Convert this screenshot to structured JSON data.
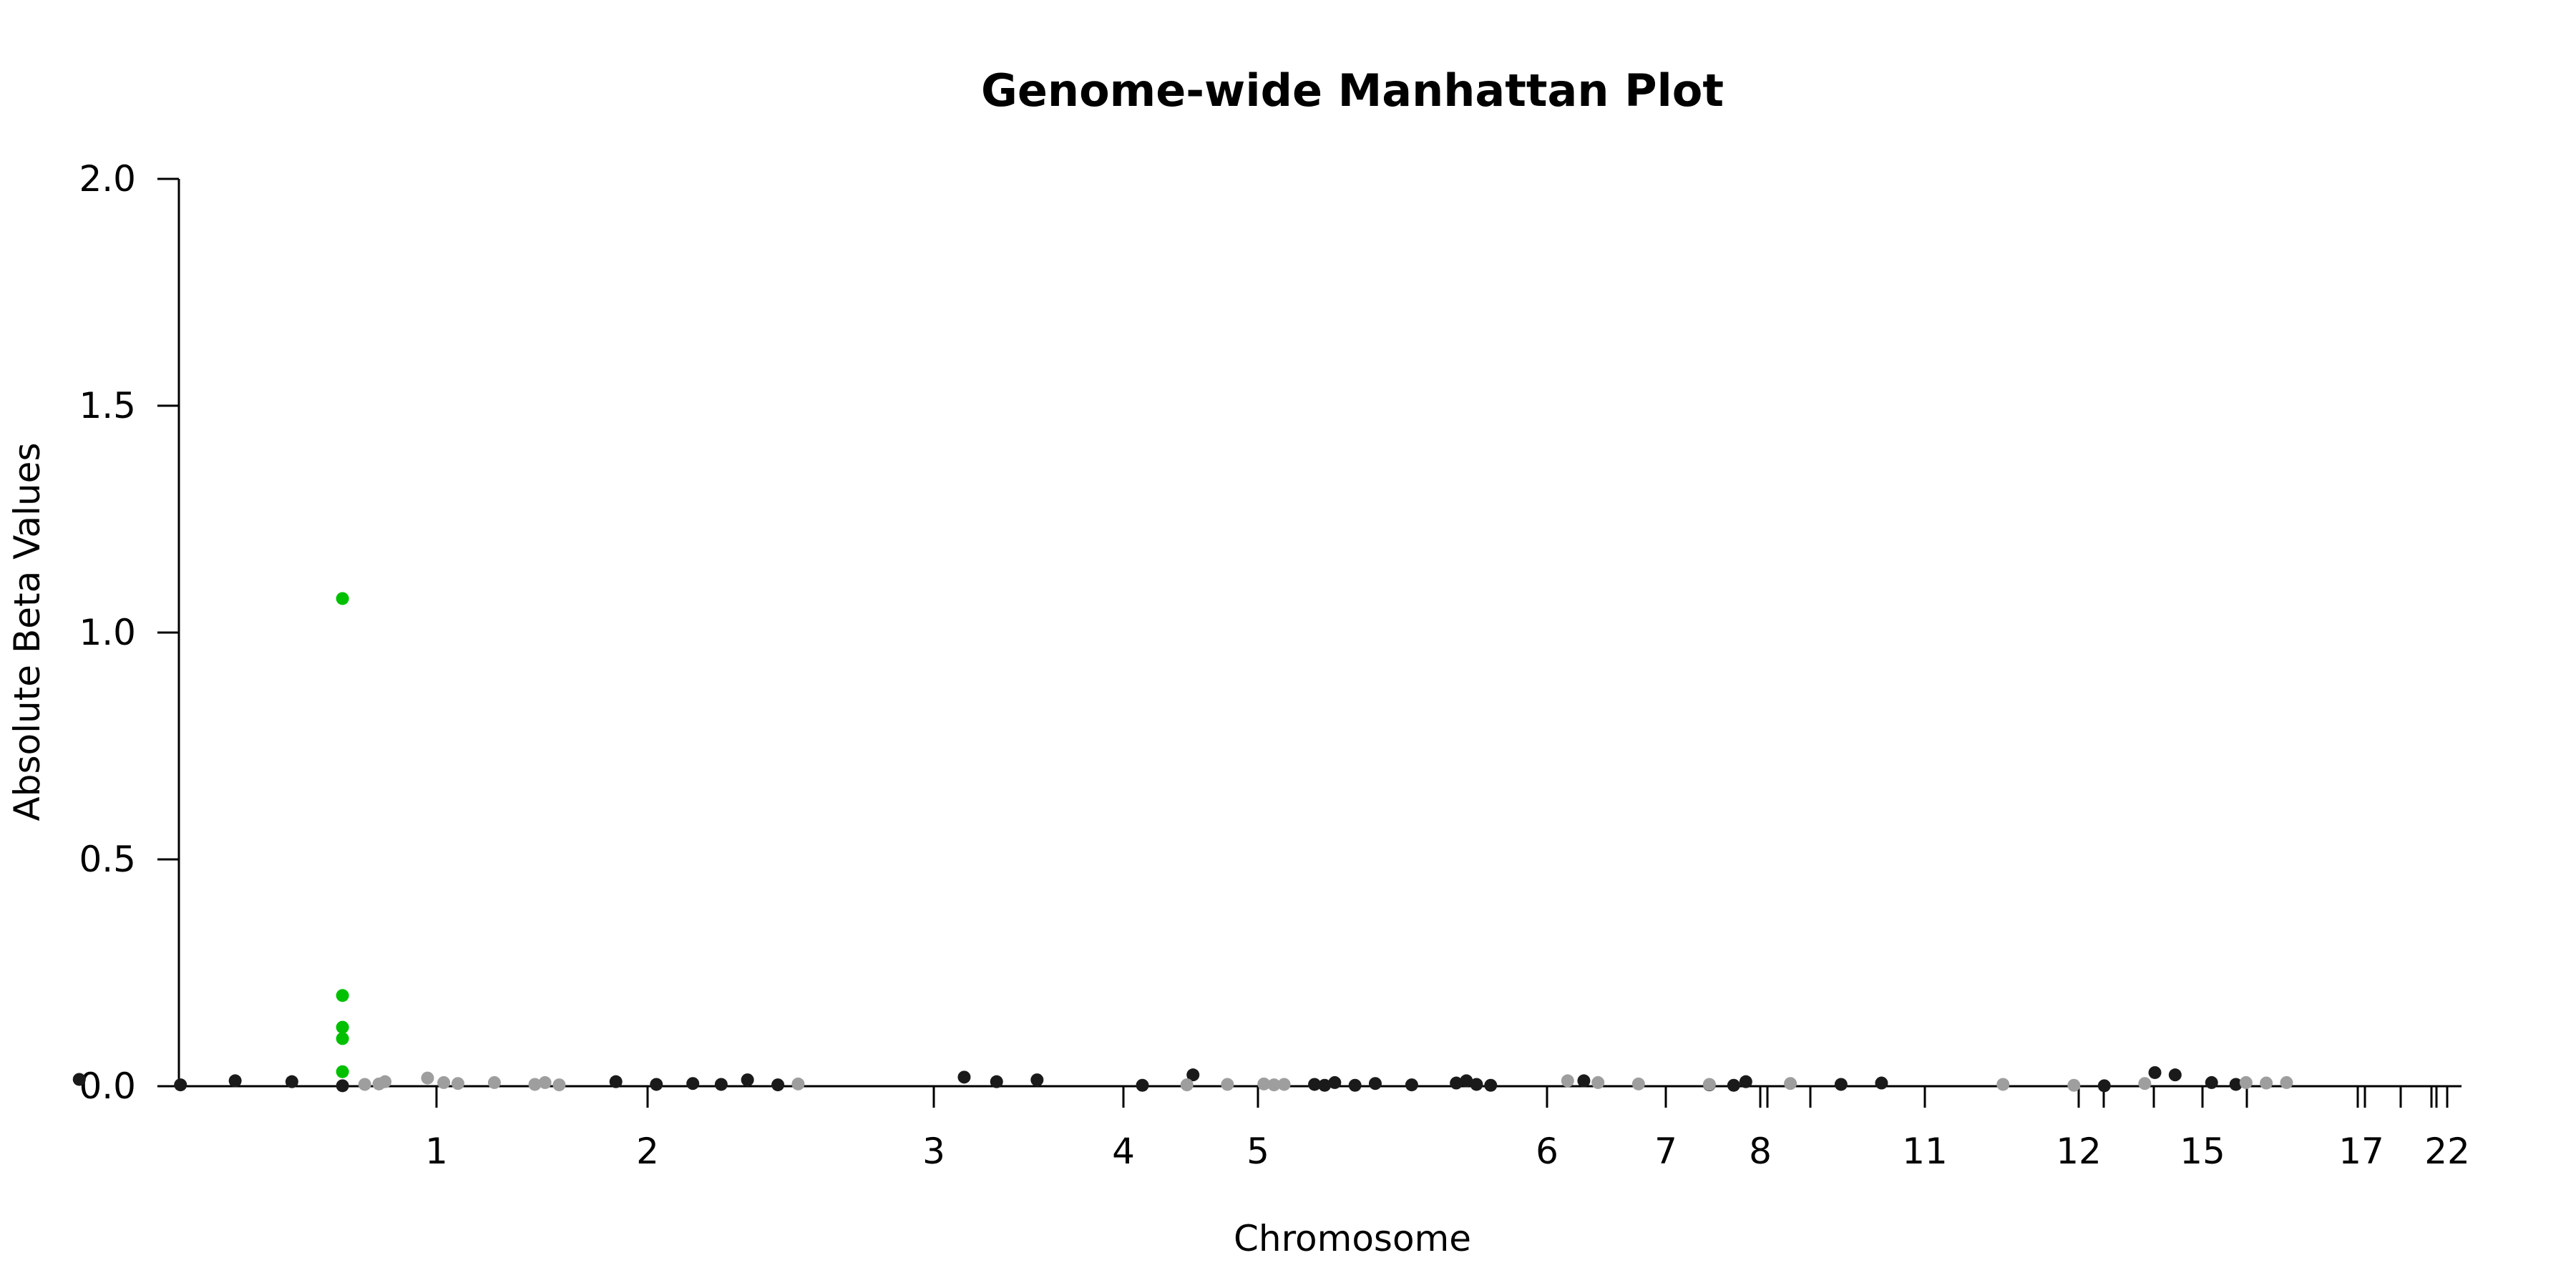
{
  "chart_data": {
    "type": "scatter",
    "title": "Genome-wide Manhattan Plot",
    "xlabel": "Chromosome",
    "ylabel": "Absolute Beta Values",
    "ylim": [
      0,
      2.0
    ],
    "y_ticks": [
      "0.0",
      "0.5",
      "1.0",
      "1.5",
      "2.0"
    ],
    "x_tick_labels": [
      "1",
      "2",
      "3",
      "4",
      "5",
      "6",
      "7",
      "8",
      "11",
      "12",
      "15",
      "17",
      "22"
    ],
    "grid": false,
    "legend": "none",
    "colors": {
      "odd_chromosome": "#1a1a1a",
      "even_chromosome": "#9e9e9e",
      "highlight": "#00c000"
    },
    "series": [
      {
        "color_role": "odd_chromosome",
        "points": [
          {
            "x": 0.25,
            "y": 0.015
          },
          {
            "x": 0.75,
            "y": 0.003
          },
          {
            "x": 1.02,
            "y": 0.012
          },
          {
            "x": 1.3,
            "y": 0.01
          },
          {
            "x": 1.55,
            "y": 0.001
          },
          {
            "x": 2.9,
            "y": 0.01
          },
          {
            "x": 3.1,
            "y": 0.004
          },
          {
            "x": 3.28,
            "y": 0.006
          },
          {
            "x": 3.42,
            "y": 0.004
          },
          {
            "x": 3.55,
            "y": 0.014
          },
          {
            "x": 3.7,
            "y": 0.003
          },
          {
            "x": 4.62,
            "y": 0.02
          },
          {
            "x": 4.78,
            "y": 0.01
          },
          {
            "x": 4.98,
            "y": 0.014
          },
          {
            "x": 5.5,
            "y": 0.002
          },
          {
            "x": 5.75,
            "y": 0.025
          },
          {
            "x": 6.35,
            "y": 0.004
          },
          {
            "x": 6.4,
            "y": 0.002
          },
          {
            "x": 6.45,
            "y": 0.008
          },
          {
            "x": 6.55,
            "y": 0.002
          },
          {
            "x": 6.65,
            "y": 0.006
          },
          {
            "x": 6.83,
            "y": 0.003
          },
          {
            "x": 7.05,
            "y": 0.007
          },
          {
            "x": 7.1,
            "y": 0.012
          },
          {
            "x": 7.15,
            "y": 0.004
          },
          {
            "x": 7.22,
            "y": 0.002
          },
          {
            "x": 7.68,
            "y": 0.012
          },
          {
            "x": 8.3,
            "y": 0.003
          },
          {
            "x": 8.42,
            "y": 0.002
          },
          {
            "x": 8.48,
            "y": 0.01
          },
          {
            "x": 8.95,
            "y": 0.004
          },
          {
            "x": 9.15,
            "y": 0.007
          },
          {
            "x": 10.25,
            "y": 0.001
          },
          {
            "x": 10.5,
            "y": 0.03
          },
          {
            "x": 10.6,
            "y": 0.025
          },
          {
            "x": 10.78,
            "y": 0.008
          },
          {
            "x": 10.9,
            "y": 0.004
          }
        ]
      },
      {
        "color_role": "even_chromosome",
        "points": [
          {
            "x": 1.66,
            "y": 0.004
          },
          {
            "x": 1.73,
            "y": 0.005
          },
          {
            "x": 1.76,
            "y": 0.01
          },
          {
            "x": 1.97,
            "y": 0.018
          },
          {
            "x": 2.05,
            "y": 0.008
          },
          {
            "x": 2.12,
            "y": 0.006
          },
          {
            "x": 2.3,
            "y": 0.008
          },
          {
            "x": 2.5,
            "y": 0.004
          },
          {
            "x": 2.55,
            "y": 0.008
          },
          {
            "x": 2.62,
            "y": 0.003
          },
          {
            "x": 3.8,
            "y": 0.005
          },
          {
            "x": 5.72,
            "y": 0.003
          },
          {
            "x": 5.92,
            "y": 0.004
          },
          {
            "x": 6.1,
            "y": 0.005
          },
          {
            "x": 6.15,
            "y": 0.003
          },
          {
            "x": 6.2,
            "y": 0.004
          },
          {
            "x": 7.6,
            "y": 0.012
          },
          {
            "x": 7.75,
            "y": 0.008
          },
          {
            "x": 7.95,
            "y": 0.005
          },
          {
            "x": 8.3,
            "y": 0.004
          },
          {
            "x": 8.7,
            "y": 0.006
          },
          {
            "x": 9.75,
            "y": 0.004
          },
          {
            "x": 10.1,
            "y": 0.002
          },
          {
            "x": 10.45,
            "y": 0.006
          },
          {
            "x": 10.95,
            "y": 0.008
          },
          {
            "x": 11.05,
            "y": 0.007
          },
          {
            "x": 11.15,
            "y": 0.008
          }
        ]
      },
      {
        "color_role": "highlight",
        "points": [
          {
            "x": 1.55,
            "y": 1.075
          },
          {
            "x": 1.55,
            "y": 0.2
          },
          {
            "x": 1.55,
            "y": 0.13
          },
          {
            "x": 1.55,
            "y": 0.105
          },
          {
            "x": 1.55,
            "y": 0.032
          }
        ]
      }
    ]
  }
}
